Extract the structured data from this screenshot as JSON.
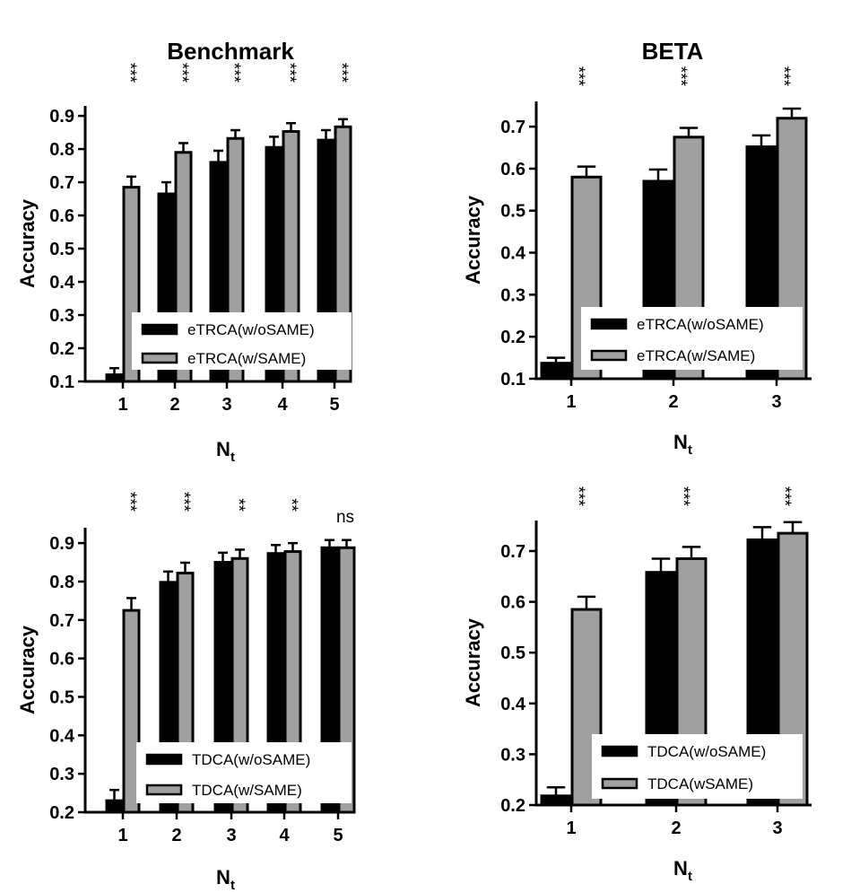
{
  "chart_data": [
    {
      "type": "bar",
      "title": "Benchmark",
      "xlabel": "N",
      "xlabel_sub": "t",
      "ylabel": "Accuracy",
      "ylim": [
        0.1,
        0.93
      ],
      "yticks": [
        "0.1",
        "0.2",
        "0.3",
        "0.4",
        "0.5",
        "0.6",
        "0.7",
        "0.8",
        "0.9"
      ],
      "categories": [
        "1",
        "2",
        "3",
        "4",
        "5"
      ],
      "series": [
        {
          "name": "eTRCA(w/oSAME)",
          "values": [
            0.12,
            0.665,
            0.76,
            0.805,
            0.827
          ],
          "errors": [
            0.02,
            0.035,
            0.035,
            0.032,
            0.03
          ]
        },
        {
          "name": "eTRCA(w/SAME)",
          "values": [
            0.685,
            0.79,
            0.832,
            0.853,
            0.867
          ],
          "errors": [
            0.032,
            0.028,
            0.025,
            0.025,
            0.023
          ]
        }
      ],
      "significance": [
        "***",
        "***",
        "***",
        "***",
        "***"
      ],
      "grid": false,
      "legend": "bottom-right"
    },
    {
      "type": "bar",
      "title": "BETA",
      "xlabel": "N",
      "xlabel_sub": "t",
      "ylabel": "Accuracy",
      "ylim": [
        0.1,
        0.76
      ],
      "yticks": [
        "0.1",
        "0.2",
        "0.3",
        "0.4",
        "0.5",
        "0.6",
        "0.7"
      ],
      "categories": [
        "1",
        "2",
        "3"
      ],
      "series": [
        {
          "name": "eTRCA(w/oSAME)",
          "values": [
            0.137,
            0.57,
            0.652
          ],
          "errors": [
            0.013,
            0.028,
            0.027
          ]
        },
        {
          "name": "eTRCA(w/SAME)",
          "values": [
            0.58,
            0.675,
            0.72
          ],
          "errors": [
            0.025,
            0.022,
            0.023
          ]
        }
      ],
      "significance": [
        "***",
        "***",
        "***"
      ],
      "grid": false,
      "legend": "bottom-right"
    },
    {
      "type": "bar",
      "title": "",
      "xlabel": "N",
      "xlabel_sub": "t",
      "ylabel": "Accuracy",
      "ylim": [
        0.2,
        0.94
      ],
      "yticks": [
        "0.2",
        "0.3",
        "0.4",
        "0.5",
        "0.6",
        "0.7",
        "0.8",
        "0.9"
      ],
      "categories": [
        "1",
        "2",
        "3",
        "4",
        "5"
      ],
      "series": [
        {
          "name": "TDCA(w/oSAME)",
          "values": [
            0.23,
            0.798,
            0.85,
            0.873,
            0.888
          ],
          "errors": [
            0.028,
            0.028,
            0.025,
            0.022,
            0.02
          ]
        },
        {
          "name": "TDCA(w/SAME)",
          "values": [
            0.725,
            0.822,
            0.86,
            0.878,
            0.888
          ],
          "errors": [
            0.032,
            0.027,
            0.023,
            0.022,
            0.02
          ]
        }
      ],
      "significance": [
        "***",
        "***",
        "**",
        "**",
        "ns"
      ],
      "grid": false,
      "legend": "bottom-right"
    },
    {
      "type": "bar",
      "title": "",
      "xlabel": "N",
      "xlabel_sub": "t",
      "ylabel": "Accuracy",
      "ylim": [
        0.2,
        0.76
      ],
      "yticks": [
        "0.2",
        "0.3",
        "0.4",
        "0.5",
        "0.6",
        "0.7"
      ],
      "categories": [
        "1",
        "2",
        "3"
      ],
      "series": [
        {
          "name": "TDCA(w/oSAME)",
          "values": [
            0.218,
            0.658,
            0.722
          ],
          "errors": [
            0.017,
            0.027,
            0.025
          ]
        },
        {
          "name": "TDCA(wSAME)",
          "values": [
            0.585,
            0.685,
            0.735
          ],
          "errors": [
            0.025,
            0.023,
            0.022
          ]
        }
      ],
      "significance": [
        "***",
        "***",
        "***"
      ],
      "grid": false,
      "legend": "bottom-right"
    }
  ],
  "colors": {
    "series_1": "#000000",
    "series_2": "#a0a0a0",
    "axis": "#000000"
  }
}
